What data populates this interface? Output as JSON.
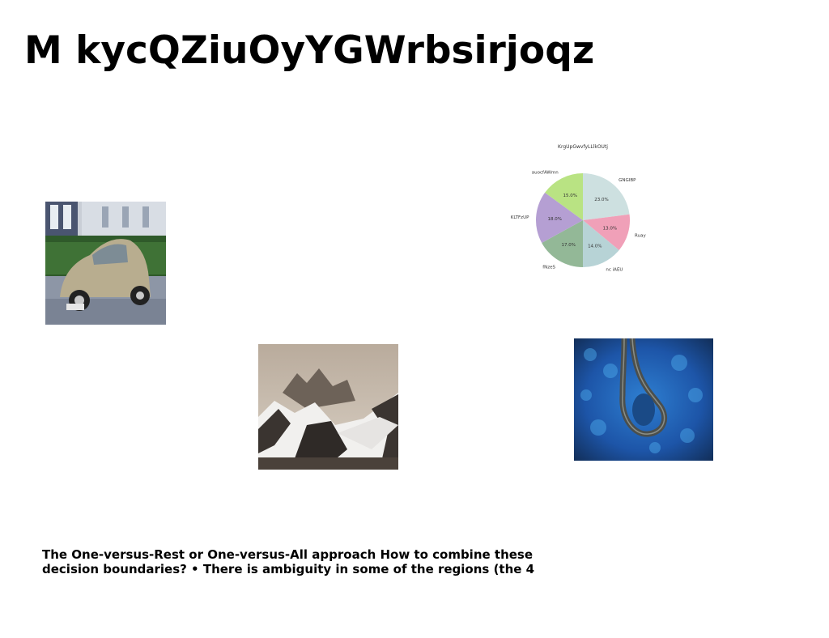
{
  "slide": {
    "title": "M kycQZiuOyYGWrbsirjoqz",
    "caption": "The One-versus-Rest or One-versus-All approach How to combine these decision boundaries? • There is ambiguity in some of the regions (the 4"
  },
  "images": {
    "car": "photo of a beige vintage beetle car",
    "mountain": "photo of snowy mountain peaks",
    "forest": "aerial photo of winding road through blue forest"
  },
  "chart_data": {
    "type": "pie",
    "title": "KrgUpGwvfyLLlkOUtj",
    "slices": [
      {
        "label": "GNGIBP",
        "value": 23.0,
        "pct_label": "23.0%",
        "color": "#cde0e0"
      },
      {
        "label": "Ruay",
        "value": 13.0,
        "pct_label": "13.0%",
        "color": "#f0a0b8"
      },
      {
        "label": "nc iAEU",
        "value": 14.0,
        "pct_label": "14.0%",
        "color": "#b7d3d6"
      },
      {
        "label": "fNzeS",
        "value": 17.0,
        "pct_label": "17.0%",
        "color": "#93b897"
      },
      {
        "label": "KLTFzUP",
        "value": 18.0,
        "pct_label": "18.0%",
        "color": "#b59fd3"
      },
      {
        "label": "auocfAWmn",
        "value": 15.0,
        "pct_label": "15.0%",
        "color": "#b9e383"
      }
    ],
    "start_angle_deg": 90,
    "direction": "clockwise"
  }
}
